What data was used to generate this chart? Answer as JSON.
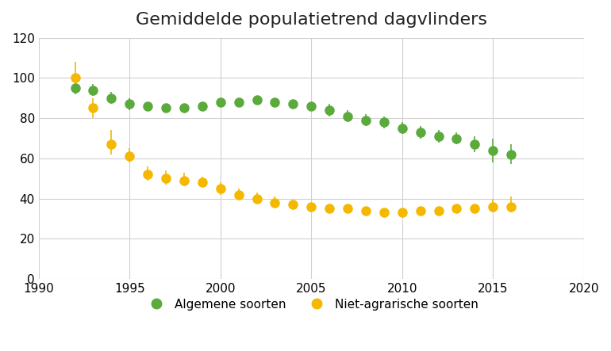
{
  "title": "Gemiddelde populatietrend dagvlinders",
  "background_color": "#ffffff",
  "grid_color": "#d0d0d0",
  "xlim": [
    1990,
    2020
  ],
  "ylim": [
    0,
    120
  ],
  "yticks": [
    0,
    20,
    40,
    60,
    80,
    100,
    120
  ],
  "xticks": [
    1990,
    1995,
    2000,
    2005,
    2010,
    2015,
    2020
  ],
  "green_color": "#5aaa3c",
  "orange_color": "#f5b800",
  "algemene": {
    "years": [
      1992,
      1993,
      1994,
      1995,
      1996,
      1997,
      1998,
      1999,
      2000,
      2001,
      2002,
      2003,
      2004,
      2005,
      2006,
      2007,
      2008,
      2009,
      2010,
      2011,
      2012,
      2013,
      2014,
      2015,
      2016
    ],
    "values": [
      95,
      94,
      90,
      87,
      86,
      85,
      85,
      86,
      88,
      88,
      89,
      88,
      87,
      86,
      84,
      81,
      79,
      78,
      75,
      73,
      71,
      70,
      67,
      64,
      62
    ],
    "err_lo": [
      3,
      3,
      3,
      3,
      2,
      2,
      2,
      2,
      2,
      2,
      2,
      2,
      2,
      2,
      3,
      3,
      3,
      3,
      3,
      3,
      3,
      3,
      4,
      6,
      5
    ],
    "err_hi": [
      3,
      3,
      3,
      3,
      2,
      2,
      2,
      2,
      2,
      2,
      2,
      2,
      2,
      2,
      3,
      3,
      3,
      3,
      3,
      3,
      3,
      3,
      4,
      6,
      5
    ]
  },
  "niet_agrarische": {
    "years": [
      1992,
      1993,
      1994,
      1995,
      1996,
      1997,
      1998,
      1999,
      2000,
      2001,
      2002,
      2003,
      2004,
      2005,
      2006,
      2007,
      2008,
      2009,
      2010,
      2011,
      2012,
      2013,
      2014,
      2015,
      2016
    ],
    "values": [
      100,
      85,
      67,
      61,
      52,
      50,
      49,
      48,
      45,
      42,
      40,
      38,
      37,
      36,
      35,
      35,
      34,
      33,
      33,
      34,
      34,
      35,
      35,
      36,
      36
    ],
    "err_lo": [
      6,
      5,
      5,
      3,
      3,
      3,
      3,
      2,
      3,
      2,
      2,
      2,
      2,
      2,
      2,
      2,
      2,
      2,
      2,
      2,
      2,
      2,
      2,
      3,
      3
    ],
    "err_hi": [
      8,
      5,
      7,
      4,
      4,
      4,
      4,
      3,
      3,
      3,
      3,
      3,
      2,
      2,
      2,
      2,
      2,
      2,
      2,
      2,
      2,
      2,
      2,
      4,
      5
    ]
  },
  "legend_algemene": "Algemene soorten",
  "legend_niet_agrarische": "Niet-agrarische soorten",
  "marker_size": 8,
  "linewidth": 1.2
}
